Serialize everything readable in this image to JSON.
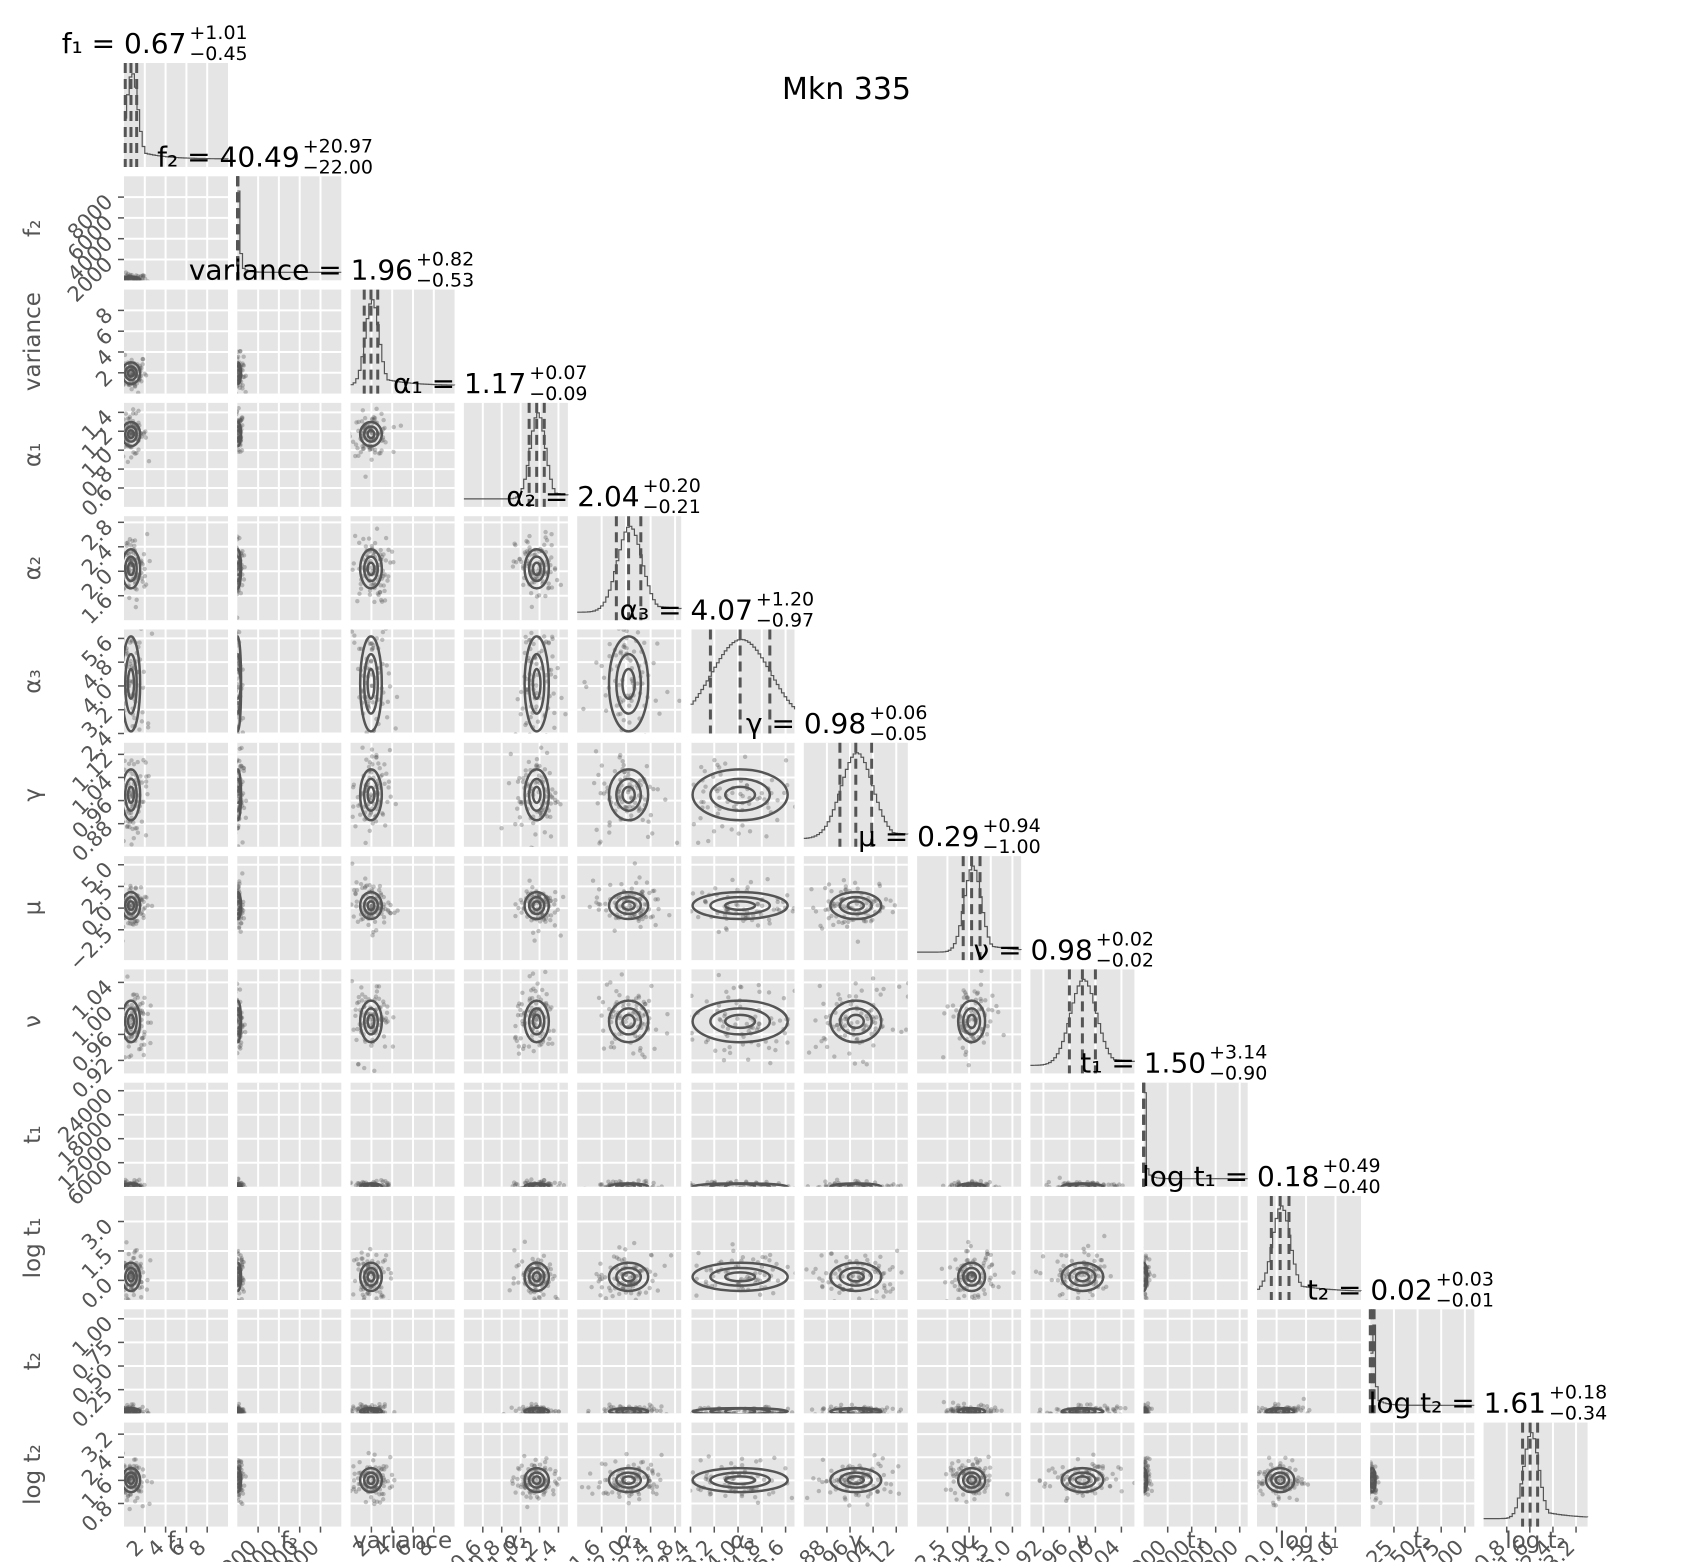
{
  "figure_title": "Mkn 335",
  "chart_data": {
    "type": "corner",
    "title": "Mkn 335",
    "parameters": [
      {
        "label": "f₁",
        "title_name": "f₁",
        "median": "0.67",
        "plus": "+1.01",
        "minus": "−0.45",
        "range": [
          0,
          10
        ],
        "ticks": [
          2,
          4,
          6,
          8
        ],
        "center": 0.67,
        "spread": 0.55
      },
      {
        "label": "f₂",
        "title_name": "f₂",
        "median": "40.49",
        "plus": "+20.97",
        "minus": "−22.00",
        "range": [
          0,
          10000
        ],
        "ticks": [
          2000,
          4000,
          6000,
          8000
        ],
        "center": 40.49,
        "spread": 21.5
      },
      {
        "label": "variance",
        "title_name": "variance",
        "median": "1.96",
        "plus": "+0.82",
        "minus": "−0.53",
        "range": [
          0,
          10
        ],
        "ticks": [
          2,
          4,
          6,
          8
        ],
        "center": 1.96,
        "spread": 0.65
      },
      {
        "label": "α₁",
        "title_name": "α₁",
        "median": "1.17",
        "plus": "+0.07",
        "minus": "−0.09",
        "range": [
          0.4,
          1.5
        ],
        "ticks": [
          0.6,
          0.8,
          1.0,
          1.2,
          1.4
        ],
        "center": 1.17,
        "spread": 0.08
      },
      {
        "label": "α₂",
        "title_name": "α₂",
        "median": "2.04",
        "plus": "+0.20",
        "minus": "−0.21",
        "range": [
          1.2,
          2.9
        ],
        "ticks": [
          1.6,
          2.0,
          2.4,
          2.8
        ],
        "center": 2.04,
        "spread": 0.2
      },
      {
        "label": "α₃",
        "title_name": "α₃",
        "median": "4.07",
        "plus": "+1.20",
        "minus": "−0.97",
        "range": [
          2.4,
          5.9
        ],
        "ticks": [
          2.4,
          3.2,
          4.0,
          4.8,
          5.6
        ],
        "center": 4.07,
        "spread": 1.0
      },
      {
        "label": "γ",
        "title_name": "γ",
        "median": "0.98",
        "plus": "+0.06",
        "minus": "−0.05",
        "range": [
          0.8,
          1.16
        ],
        "ticks": [
          0.88,
          0.96,
          1.04,
          1.12
        ],
        "center": 0.98,
        "spread": 0.055
      },
      {
        "label": "μ",
        "title_name": "μ",
        "median": "0.29",
        "plus": "+0.94",
        "minus": "−1.00",
        "range": [
          -6,
          6
        ],
        "ticks": [
          -2.5,
          0.0,
          2.5,
          5.0
        ],
        "center": 0.29,
        "spread": 0.97
      },
      {
        "label": "ν",
        "title_name": "ν",
        "median": "0.98",
        "plus": "+0.02",
        "minus": "−0.02",
        "range": [
          0.9,
          1.06
        ],
        "ticks": [
          0.92,
          0.96,
          1.0,
          1.04
        ],
        "center": 0.98,
        "spread": 0.02
      },
      {
        "label": "t₁",
        "title_name": "t₁",
        "median": "1.50",
        "plus": "+3.14",
        "minus": "−0.90",
        "range": [
          0,
          26000
        ],
        "ticks": [
          6000,
          12000,
          18000,
          24000
        ],
        "center": 1.5,
        "spread": 2.0
      },
      {
        "label": "log t₁",
        "title_name": "log t₁",
        "median": "0.18",
        "plus": "+0.49",
        "minus": "−0.40",
        "range": [
          -1,
          4.3
        ],
        "ticks": [
          0.0,
          1.5,
          3.0
        ],
        "center": 0.18,
        "spread": 0.45
      },
      {
        "label": "t₂",
        "title_name": "t₂",
        "median": "0.02",
        "plus": "+0.03",
        "minus": "−0.01",
        "range": [
          0,
          1.1
        ],
        "ticks": [
          0.25,
          0.5,
          0.75,
          1.0
        ],
        "center": 0.02,
        "spread": 0.02
      },
      {
        "label": "log t₂",
        "title_name": "log t₂",
        "median": "1.61",
        "plus": "+0.18",
        "minus": "−0.34",
        "range": [
          0,
          3.6
        ],
        "ticks": [
          0.8,
          1.6,
          2.4,
          3.2
        ],
        "center": 1.61,
        "spread": 0.26
      }
    ],
    "tick_labels": {
      "f₁": [
        "2",
        "4",
        "6",
        "8"
      ],
      "f₂": [
        "2000",
        "4000",
        "6000",
        "8000"
      ],
      "variance": [
        "2",
        "4",
        "6",
        "8"
      ],
      "α₁": [
        "0.6",
        "0.8",
        "1.0",
        "1.2",
        "1.4"
      ],
      "α₂": [
        "1.6",
        "2.0",
        "2.4",
        "2.8"
      ],
      "α₃": [
        "2.4",
        "3.2",
        "4.0",
        "4.8",
        "5.6"
      ],
      "γ": [
        "0.88",
        "0.96",
        "1.04",
        "1.12"
      ],
      "μ": [
        "−2.5",
        "0.0",
        "2.5",
        "5.0"
      ],
      "ν": [
        "0.92",
        "0.96",
        "1.00",
        "1.04"
      ],
      "t₁": [
        "6000",
        "12000",
        "18000",
        "24000"
      ],
      "log t₁": [
        "0.0",
        "1.5",
        "3.0"
      ],
      "t₂": [
        "0.25",
        "0.50",
        "0.75",
        "1.00"
      ],
      "log t₂": [
        "0.8",
        "1.6",
        "2.4",
        "3.2"
      ]
    },
    "quantiles": [
      0.16,
      0.5,
      0.84
    ],
    "histogram_style": "step",
    "grid": true,
    "background": "#e5e5e5",
    "grid_color": "#ffffff",
    "ink_color": "#555555"
  }
}
